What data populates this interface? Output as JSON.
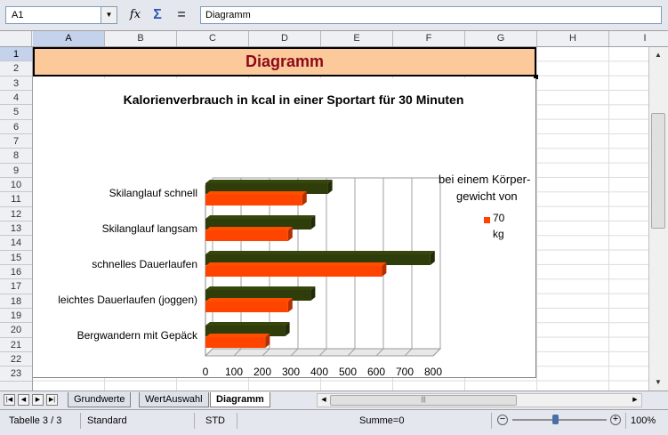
{
  "formula_bar": {
    "cell_ref": "A1",
    "content": "Diagramm",
    "icons": [
      "function-wizard-icon",
      "sum-icon",
      "equals-icon"
    ]
  },
  "columns": [
    "A",
    "B",
    "C",
    "D",
    "E",
    "F",
    "G",
    "H",
    "I"
  ],
  "rows": [
    "1",
    "2",
    "3",
    "4",
    "5",
    "6",
    "7",
    "8",
    "9",
    "10",
    "11",
    "12",
    "13",
    "14",
    "15",
    "16",
    "17",
    "18",
    "19",
    "20",
    "21",
    "22",
    "23"
  ],
  "sheet": {
    "title_cell": "Diagramm",
    "title_fill": "#fcc99a",
    "title_color": "#8b0a1a"
  },
  "chart_data": {
    "type": "bar",
    "orientation": "horizontal",
    "title": "Kalorienverbrauch in kcal in einer Sportart für 30 Minuten",
    "categories": [
      "Skilanglauf schnell",
      "Skilanglauf langsam",
      "schnelles Dauerlaufen",
      "leichtes Dauerlaufen (joggen)",
      "Bergwandern mit Gepäck"
    ],
    "series": [
      {
        "name": "",
        "color": "#2f3d0a",
        "values": [
          430,
          370,
          790,
          370,
          280
        ]
      },
      {
        "name": "70 kg",
        "color": "#ff4400",
        "values": [
          340,
          290,
          620,
          290,
          210
        ]
      }
    ],
    "legend_title": [
      "bei einem Körper-",
      "gewicht von"
    ],
    "legend_label": [
      "70",
      "kg"
    ],
    "xticks": [
      "0",
      "100",
      "200",
      "300",
      "400",
      "500",
      "600",
      "700",
      "800"
    ],
    "xlim": [
      0,
      800
    ],
    "grid": true,
    "legend_position": "right"
  },
  "sheet_tabs": [
    "Grundwerte",
    "WertAuswahl",
    "Diagramm"
  ],
  "active_tab": "Diagramm",
  "status": {
    "sheet": "Tabelle 3 / 3",
    "style": "Standard",
    "mode": "STD",
    "sum": "Summe=0",
    "zoom": "100%"
  }
}
